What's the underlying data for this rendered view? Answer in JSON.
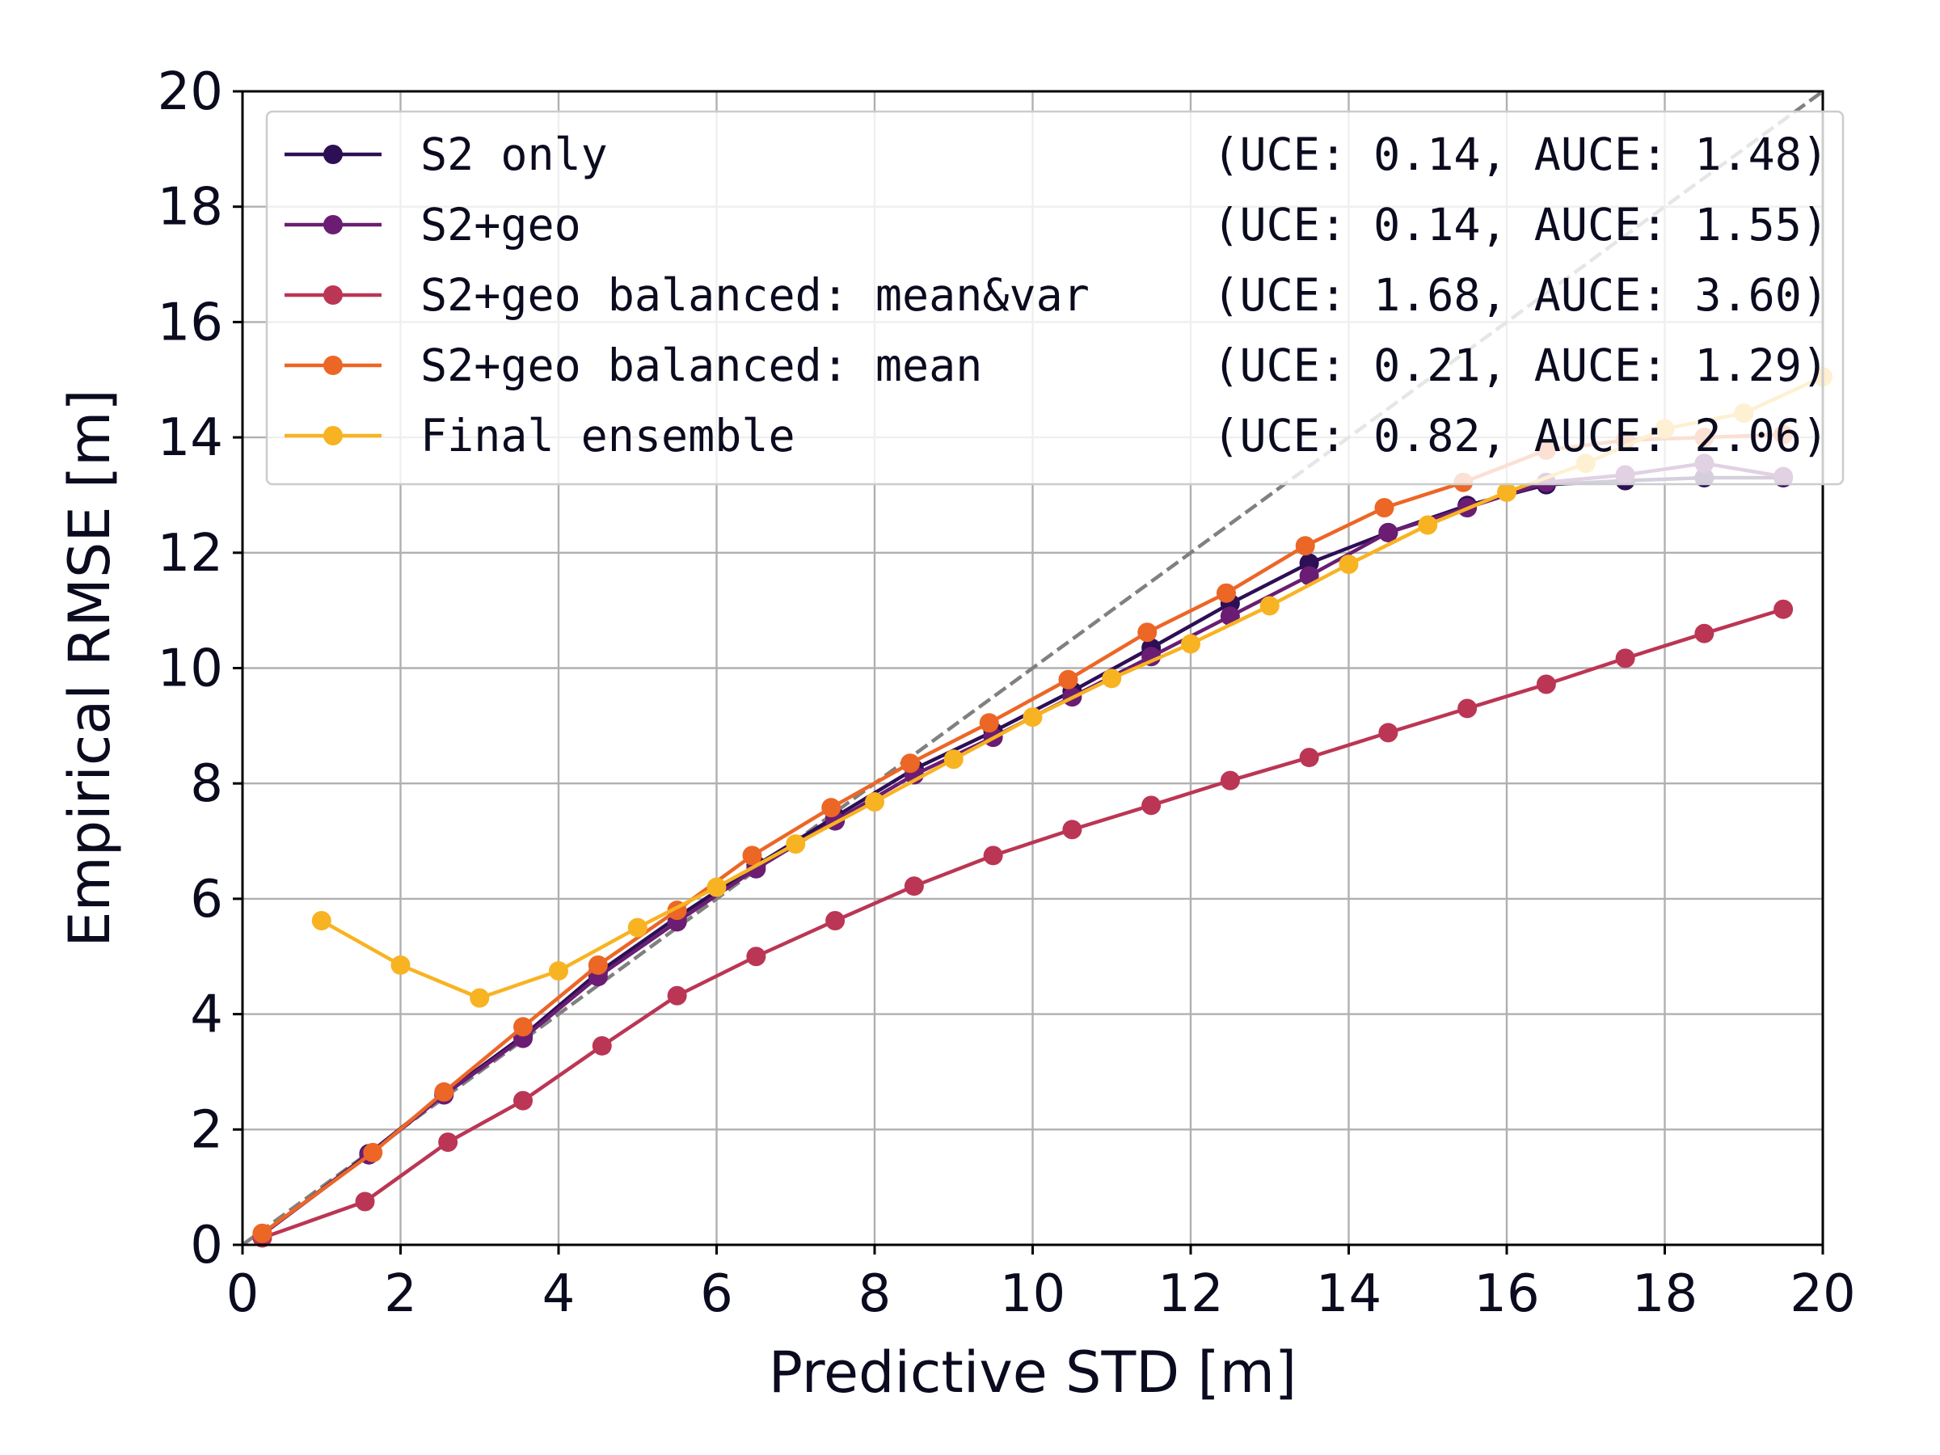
{
  "chart_data": {
    "type": "line",
    "title": "",
    "xlabel": "Predictive STD [m]",
    "ylabel": "Empirical RMSE [m]",
    "xlim": [
      0,
      20
    ],
    "ylim": [
      0,
      20
    ],
    "xticks": [
      "0",
      "2",
      "4",
      "6",
      "8",
      "10",
      "12",
      "14",
      "16",
      "18",
      "20"
    ],
    "yticks": [
      "0",
      "2",
      "4",
      "6",
      "8",
      "10",
      "12",
      "14",
      "16",
      "18",
      "20"
    ],
    "grid": true,
    "legend_position": "top",
    "reference_line": {
      "name": "ideal calibration",
      "style": "dashed",
      "color": "#808080",
      "x": [
        0,
        20
      ],
      "y": [
        0,
        20
      ]
    },
    "series": [
      {
        "name": "S2 only",
        "metrics": "(UCE: 0.14, AUCE: 1.48)",
        "color": "#2d0f55",
        "x": [
          0.25,
          1.6,
          2.55,
          3.55,
          4.5,
          5.5,
          6.5,
          7.5,
          8.5,
          9.5,
          10.5,
          11.5,
          12.5,
          13.5,
          14.5,
          15.5,
          16.5,
          17.5,
          18.5,
          19.5
        ],
        "y": [
          0.18,
          1.58,
          2.62,
          3.62,
          4.72,
          5.68,
          6.58,
          7.42,
          8.25,
          8.9,
          9.6,
          10.35,
          11.12,
          11.82,
          12.35,
          12.82,
          13.18,
          13.25,
          13.3,
          13.3
        ]
      },
      {
        "name": "S2+geo",
        "metrics": "(UCE: 0.14, AUCE: 1.55)",
        "color": "#6a1d73",
        "x": [
          0.25,
          1.6,
          2.55,
          3.55,
          4.5,
          5.5,
          6.5,
          7.5,
          8.5,
          9.5,
          10.5,
          11.5,
          12.5,
          13.5,
          14.5,
          15.5,
          16.5,
          17.5,
          18.5,
          19.5
        ],
        "y": [
          0.18,
          1.56,
          2.6,
          3.58,
          4.65,
          5.6,
          6.52,
          7.35,
          8.15,
          8.8,
          9.5,
          10.2,
          10.9,
          11.6,
          12.35,
          12.78,
          13.22,
          13.35,
          13.55,
          13.32
        ]
      },
      {
        "name": "S2+geo balanced: mean&var",
        "metrics": "(UCE: 1.68, AUCE: 3.60)",
        "color": "#bb3654",
        "x": [
          0.25,
          1.55,
          2.6,
          3.55,
          4.55,
          5.5,
          6.5,
          7.5,
          8.5,
          9.5,
          10.5,
          11.5,
          12.5,
          13.5,
          14.5,
          15.5,
          16.5,
          17.5,
          18.5,
          19.5
        ],
        "y": [
          0.12,
          0.75,
          1.78,
          2.5,
          3.45,
          4.32,
          5.0,
          5.62,
          6.22,
          6.75,
          7.2,
          7.62,
          8.05,
          8.45,
          8.88,
          9.3,
          9.72,
          10.17,
          10.6,
          11.02
        ]
      },
      {
        "name": "S2+geo balanced: mean",
        "metrics": "(UCE: 0.21, AUCE: 1.29)",
        "color": "#ec6626",
        "x": [
          0.25,
          1.65,
          2.55,
          3.55,
          4.5,
          5.5,
          6.45,
          7.45,
          8.45,
          9.45,
          10.45,
          11.45,
          12.45,
          13.45,
          14.45,
          15.45,
          16.5,
          17.5,
          18.5,
          19.5
        ],
        "y": [
          0.2,
          1.6,
          2.65,
          3.78,
          4.85,
          5.8,
          6.75,
          7.58,
          8.35,
          9.05,
          9.8,
          10.62,
          11.3,
          12.12,
          12.78,
          13.22,
          13.78,
          13.95,
          14.0,
          14.05
        ]
      },
      {
        "name": "Final ensemble",
        "metrics": "(UCE: 0.82, AUCE: 2.06)",
        "color": "#f8b322",
        "x": [
          1.0,
          2.0,
          3.0,
          4.0,
          5.0,
          6.0,
          7.0,
          8.0,
          9.0,
          10.0,
          11.0,
          12.0,
          13.0,
          14.0,
          15.0,
          16.0,
          17.0,
          18.0,
          19.0,
          20.0
        ],
        "y": [
          5.62,
          4.85,
          4.28,
          4.75,
          5.5,
          6.2,
          6.95,
          7.68,
          8.42,
          9.15,
          9.82,
          10.42,
          11.08,
          11.8,
          12.48,
          13.05,
          13.55,
          14.15,
          14.42,
          15.05
        ]
      }
    ]
  }
}
